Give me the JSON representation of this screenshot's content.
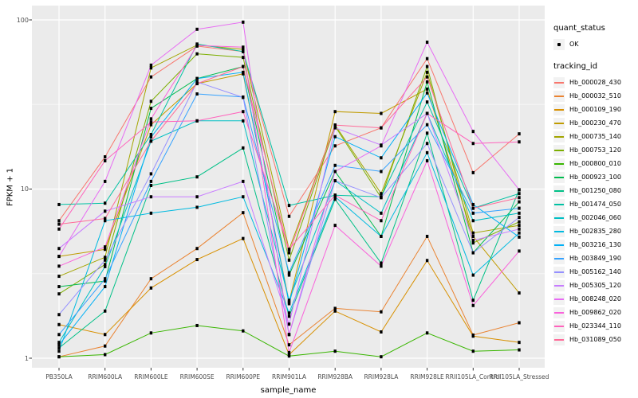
{
  "axes": {
    "y": {
      "label": "FPKM + 1",
      "scale": "log10",
      "major_ticks": [
        {
          "value": 1,
          "label": "1"
        },
        {
          "value": 10,
          "label": "10"
        },
        {
          "value": 100,
          "label": "100"
        }
      ],
      "minor_gridlines": [
        3.1623,
        31.623
      ]
    },
    "x": {
      "label": "sample_name",
      "categories": [
        "PB350LA",
        "RRIM600LA",
        "RRIM600LE",
        "RRIM600SE",
        "RRIM600PE",
        "RRIM901LA",
        "RRIM928BA",
        "RRIM928LA",
        "RRIM928LE",
        "RRII105LA_Control",
        "RRII105LA_Stressed"
      ]
    }
  },
  "legend": {
    "quant_status_title": "quant_status",
    "quant_status_items": [
      {
        "label": "OK",
        "marker": "black-point"
      }
    ],
    "tracking_id_title": "tracking_id"
  },
  "style": {
    "panel_bg": "#EBEBEB",
    "grid_major": "#FFFFFF",
    "grid_minor": "rgba(255,255,255,0.55)",
    "tick_color": "#333333",
    "tick_text_color": "#4d4d4d",
    "marker_color": "#000000",
    "legend_key_bg": "#F2F2F2"
  },
  "chart_data": {
    "type": "line",
    "title": "",
    "xlabel": "sample_name",
    "ylabel": "FPKM + 1",
    "yscale": "log10",
    "ylim": [
      0.88,
      120
    ],
    "grid": true,
    "legend_position": "right",
    "marker": "point",
    "marker_meaning": "quant_status = OK",
    "categories": [
      "PB350LA",
      "RRIM600LA",
      "RRIM600LE",
      "RRIM600SE",
      "RRIM600PE",
      "RRIM901LA",
      "RRIM928BA",
      "RRIM928LA",
      "RRIM928LE",
      "RRII105LA_Control",
      "RRII105LA_Stressed"
    ],
    "series": [
      {
        "name": "Hb_000028_430",
        "color": "#F8766D",
        "values": [
          6.5,
          15.5,
          46,
          70,
          65,
          6.9,
          18,
          23,
          59,
          12.5,
          21.2
        ]
      },
      {
        "name": "Hb_000032_510",
        "color": "#EA8331",
        "values": [
          1.02,
          1.18,
          2.95,
          4.45,
          7.25,
          1.2,
          1.97,
          1.88,
          5.25,
          1.37,
          1.62
        ]
      },
      {
        "name": "Hb_000109_190",
        "color": "#D89000",
        "values": [
          1.58,
          1.38,
          2.6,
          3.83,
          5.1,
          1.05,
          1.9,
          1.43,
          3.78,
          1.35,
          1.24
        ]
      },
      {
        "name": "Hb_000230_470",
        "color": "#C09B00",
        "values": [
          4.0,
          4.4,
          24,
          42,
          48,
          2.15,
          28.7,
          28,
          39,
          5.25,
          2.43
        ]
      },
      {
        "name": "Hb_000735_140",
        "color": "#A3A500",
        "values": [
          3.05,
          3.95,
          52,
          71,
          67,
          4.4,
          23.9,
          9.4,
          49,
          5.5,
          6.1
        ]
      },
      {
        "name": "Hb_000753_120",
        "color": "#7CAE00",
        "values": [
          2.4,
          3.58,
          33,
          63,
          60,
          3.8,
          23.5,
          8.9,
          53,
          4.8,
          6.4
        ]
      },
      {
        "name": "Hb_000800_010",
        "color": "#39B600",
        "values": [
          1.02,
          1.05,
          1.41,
          1.56,
          1.45,
          1.03,
          1.1,
          1.02,
          1.41,
          1.1,
          1.12
        ]
      },
      {
        "name": "Hb_000923_100",
        "color": "#00BB4E",
        "values": [
          2.65,
          2.86,
          30,
          45,
          53,
          3.1,
          12.7,
          5.25,
          43,
          4.2,
          8.4
        ]
      },
      {
        "name": "Hb_001250_080",
        "color": "#00C087",
        "values": [
          1.15,
          1.9,
          10.5,
          11.8,
          17.5,
          1.77,
          8.7,
          3.65,
          21.4,
          2.2,
          9.9
        ]
      },
      {
        "name": "Hb_001474_050",
        "color": "#00C1A3",
        "values": [
          8.1,
          8.25,
          21,
          72,
          65,
          8.0,
          9.2,
          9.0,
          32.7,
          7.7,
          9.4
        ]
      },
      {
        "name": "Hb_002046_060",
        "color": "#00BFC4",
        "values": [
          1.24,
          3.48,
          19.2,
          25.3,
          25.3,
          2.2,
          11.2,
          7.2,
          28,
          6.5,
          7.2
        ]
      },
      {
        "name": "Hb_002835_280",
        "color": "#00BAE0",
        "values": [
          1.1,
          6.5,
          7.2,
          7.8,
          9.0,
          1.85,
          9.0,
          5.25,
          16.4,
          3.1,
          5.5
        ]
      },
      {
        "name": "Hb_003216_130",
        "color": "#00B0F6",
        "values": [
          1.2,
          2.65,
          20.3,
          45,
          49,
          2.1,
          20.4,
          15.3,
          37,
          8.1,
          5.2
        ]
      },
      {
        "name": "Hb_003849_190",
        "color": "#35A2FF",
        "values": [
          1.38,
          2.95,
          11.1,
          36.5,
          35,
          3.2,
          13.8,
          12.7,
          24,
          7.2,
          7.7
        ]
      },
      {
        "name": "Hb_005162_140",
        "color": "#9590FF",
        "values": [
          1.81,
          3.8,
          12.3,
          43,
          34.8,
          1.38,
          11.2,
          8.9,
          18.6,
          4.2,
          6.8
        ]
      },
      {
        "name": "Hb_005305_120",
        "color": "#C77CFF",
        "values": [
          4.45,
          7.4,
          9.0,
          9.0,
          11.1,
          1.59,
          23,
          18.2,
          28,
          4.97,
          5.8
        ]
      },
      {
        "name": "Hb_008248_020",
        "color": "#E76BF3",
        "values": [
          4.0,
          11.1,
          54,
          88,
          97,
          1.38,
          12.7,
          18.0,
          73.8,
          21.9,
          9.9
        ]
      },
      {
        "name": "Hb_009862_020",
        "color": "#FA62DB",
        "values": [
          3.5,
          4.55,
          26,
          70.6,
          69,
          1.08,
          6.1,
          3.5,
          14.7,
          2.05,
          4.3
        ]
      },
      {
        "name": "Hb_023344_110",
        "color": "#FF62BC",
        "values": [
          5.8,
          14.7,
          24.9,
          25.3,
          28.7,
          4.4,
          9.2,
          6.5,
          28,
          18.6,
          19.0
        ]
      },
      {
        "name": "Hb_031089_050",
        "color": "#FF6A98",
        "values": [
          6.2,
          6.7,
          19.2,
          42,
          53,
          4.2,
          23.9,
          23,
          46,
          7.7,
          8.9
        ]
      }
    ]
  }
}
